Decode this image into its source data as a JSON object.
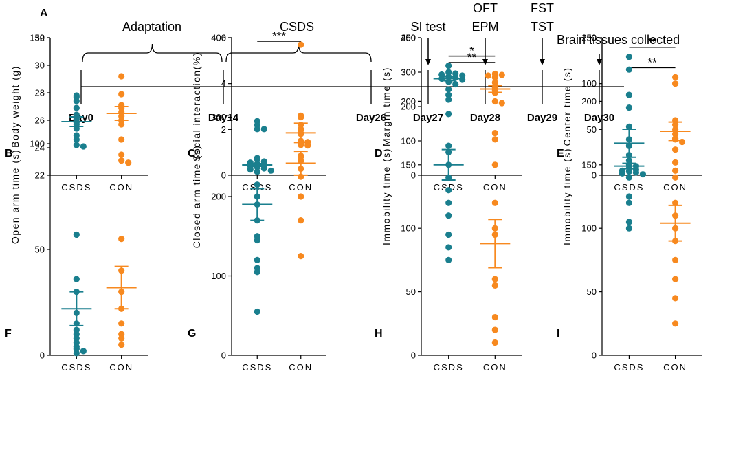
{
  "timeline": {
    "panel_label": "A",
    "days": [
      "Day0",
      "Day14",
      "Day26",
      "Day27",
      "Day28",
      "Day29",
      "Day30"
    ],
    "phases": [
      "Adaptation",
      "CSDS"
    ],
    "events": [
      {
        "day": "Day27",
        "lines": [
          "SI test"
        ]
      },
      {
        "day": "Day28",
        "lines": [
          "OFT",
          "EPM"
        ]
      },
      {
        "day": "Day29",
        "lines": [
          "FST",
          "TST"
        ]
      },
      {
        "day": "Day30",
        "lines": [
          "Brain tissues collected"
        ]
      }
    ]
  },
  "colors": {
    "csds": "#1a7f8e",
    "con": "#f7891f",
    "axis": "#000000"
  },
  "chart_data": [
    {
      "panel": "B",
      "type": "scatter",
      "ylabel": "Body weight (g)",
      "categories": [
        "CSDS",
        "CON"
      ],
      "ylim": [
        22,
        32
      ],
      "yticks": [
        22,
        24,
        26,
        28,
        30,
        32
      ],
      "series": [
        {
          "name": "CSDS",
          "points": [
            27.8,
            27.7,
            27.4,
            26.9,
            26.4,
            26.1,
            25.7,
            25.4,
            24.9,
            24.6,
            24.2,
            24.1
          ],
          "mean": 25.9,
          "sem": 0.35
        },
        {
          "name": "CON",
          "points": [
            29.2,
            27.9,
            27.1,
            26.9,
            26.6,
            26.3,
            26.0,
            25.7,
            24.6,
            23.5
          ],
          "mean": 26.5,
          "sem": 0.5
        }
      ],
      "significance": null
    },
    {
      "panel": "C",
      "type": "scatter",
      "ylabel": "Social interaction(%)",
      "categories": [
        "CSDS",
        "CON"
      ],
      "ylim": [
        0,
        6
      ],
      "yticks": [
        0,
        2,
        4,
        6
      ],
      "series": [
        {
          "name": "CSDS",
          "points": [
            0.75,
            0.7,
            0.6,
            0.55,
            0.5,
            0.45,
            0.4,
            0.35,
            0.3,
            0.25,
            0.2,
            0.15
          ],
          "mean": 0.45,
          "sem": 0.06
        },
        {
          "name": "CON",
          "points": [
            5.7,
            2.6,
            2.2,
            2.0,
            1.8,
            1.5,
            1.45,
            1.4,
            1.3,
            0.85
          ],
          "mean": 1.85,
          "sem": 0.42
        }
      ],
      "significance": "***"
    },
    {
      "panel": "D",
      "type": "scatter",
      "ylabel": "Margin time (s)",
      "categories": [
        "CSDS",
        "CON"
      ],
      "ylim": [
        0,
        400
      ],
      "yticks": [
        0,
        100,
        200,
        300,
        400
      ],
      "series": [
        {
          "name": "CSDS",
          "points": [
            300,
            296,
            293,
            290,
            287,
            284,
            281,
            278,
            272,
            265,
            250,
            220
          ],
          "mean": 281,
          "sem": 6
        },
        {
          "name": "CON",
          "points": [
            295,
            292,
            290,
            285,
            270,
            255,
            248,
            240,
            215,
            210
          ],
          "mean": 251,
          "sem": 10
        }
      ],
      "significance": "**"
    },
    {
      "panel": "E",
      "type": "scatter",
      "ylabel": "Center time (s)",
      "categories": [
        "CSDS",
        "CON"
      ],
      "ylim": [
        0,
        150
      ],
      "yticks": [
        0,
        50,
        100,
        150
      ],
      "series": [
        {
          "name": "CSDS",
          "points": [
            32,
            22,
            16,
            12,
            10,
            8,
            6,
            5,
            4,
            3,
            2,
            1
          ],
          "mean": 10,
          "sem": 3
        },
        {
          "name": "CON",
          "points": [
            107,
            100,
            60,
            55,
            50,
            45,
            40,
            28,
            14,
            5
          ],
          "mean": 48,
          "sem": 10
        }
      ],
      "significance": "**"
    },
    {
      "panel": "F",
      "type": "scatter",
      "ylabel": "Open arm time (s)",
      "categories": [
        "CSDS",
        "CON"
      ],
      "ylim": [
        0,
        150
      ],
      "yticks": [
        0,
        50,
        100,
        150
      ],
      "series": [
        {
          "name": "CSDS",
          "points": [
            110,
            57,
            36,
            30,
            20,
            15,
            12,
            10,
            8,
            6,
            4,
            3,
            2,
            1
          ],
          "mean": 22,
          "sem": 8
        },
        {
          "name": "CON",
          "points": [
            92,
            91,
            55,
            40,
            30,
            22,
            15,
            10,
            8,
            5
          ],
          "mean": 32,
          "sem": 10
        }
      ],
      "significance": null
    },
    {
      "panel": "G",
      "type": "scatter",
      "ylabel": "Closed arm time (s)",
      "categories": [
        "CSDS",
        "CON"
      ],
      "ylim": [
        0,
        400
      ],
      "yticks": [
        0,
        100,
        200,
        300,
        400
      ],
      "series": [
        {
          "name": "CSDS",
          "points": [
            295,
            290,
            285,
            285,
            215,
            200,
            190,
            170,
            150,
            145,
            120,
            110,
            105,
            55
          ],
          "mean": 190,
          "sem": 20
        },
        {
          "name": "CON",
          "points": [
            300,
            285,
            280,
            265,
            250,
            245,
            235,
            225,
            200,
            170,
            125
          ],
          "mean": 242,
          "sem": 15
        }
      ],
      "significance": null
    },
    {
      "panel": "H",
      "type": "scatter",
      "ylabel": "Immobility time (s)",
      "categories": [
        "CSDS",
        "CON"
      ],
      "ylim": [
        0,
        250
      ],
      "yticks": [
        0,
        50,
        100,
        150,
        200,
        250
      ],
      "series": [
        {
          "name": "CSDS",
          "points": [
            228,
            205,
            190,
            165,
            160,
            150,
            140,
            130,
            120,
            110,
            95,
            85,
            75
          ],
          "mean": 150,
          "sem": 12
        },
        {
          "name": "CON",
          "points": [
            175,
            170,
            150,
            120,
            100,
            95,
            60,
            55,
            30,
            20,
            10
          ],
          "mean": 88,
          "sem": 19
        }
      ],
      "significance": "*"
    },
    {
      "panel": "I",
      "type": "scatter",
      "ylabel": "Immobility time (s)",
      "categories": [
        "CSDS",
        "CON"
      ],
      "ylim": [
        0,
        250
      ],
      "yticks": [
        0,
        50,
        100,
        150,
        200,
        250
      ],
      "series": [
        {
          "name": "CSDS",
          "points": [
            235,
            225,
            205,
            195,
            180,
            170,
            165,
            150,
            140,
            125,
            120,
            105,
            100
          ],
          "mean": 167,
          "sem": 11
        },
        {
          "name": "CON",
          "points": [
            170,
            168,
            140,
            120,
            110,
            100,
            90,
            75,
            60,
            45,
            25
          ],
          "mean": 104,
          "sem": 14
        }
      ],
      "significance": "**"
    }
  ]
}
